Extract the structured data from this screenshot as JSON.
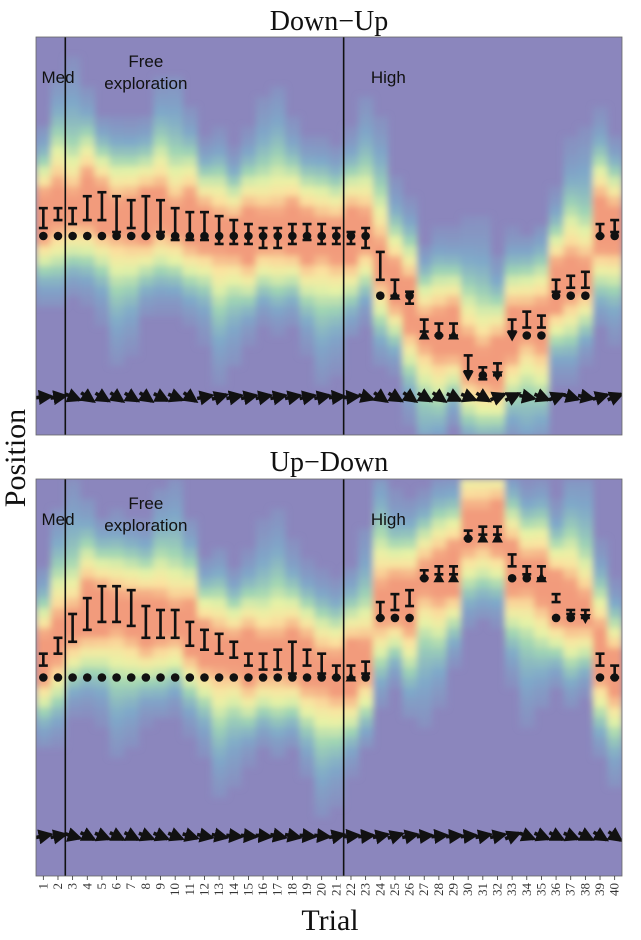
{
  "chart_data": {
    "type": "heatmap",
    "ylabel": "Position",
    "xlabel": "Trial",
    "x_ticks": [
      "1",
      "2",
      "3",
      "4",
      "5",
      "6",
      "7",
      "8",
      "9",
      "10",
      "11",
      "12",
      "13",
      "14",
      "15",
      "16",
      "17",
      "18",
      "19",
      "20",
      "21",
      "22",
      "23",
      "24",
      "25",
      "26",
      "27",
      "28",
      "29",
      "30",
      "31",
      "32",
      "33",
      "34",
      "35",
      "36",
      "37",
      "38",
      "39",
      "40"
    ],
    "y_range": [
      0,
      1
    ],
    "colors": {
      "background": "#8b86bd",
      "scale": [
        "#8b86bd",
        "#7fa8c9",
        "#9fd4b4",
        "#e6f2a6",
        "#fbe3a0",
        "#f29b7c"
      ],
      "ink": "#111111"
    },
    "panels": [
      {
        "title": "Down−Up",
        "segments": [
          {
            "label": "Med",
            "start_trial": 1
          },
          {
            "label": "Free\nexploration",
            "start_trial": 2
          },
          {
            "label": "High",
            "start_trial": 21
          }
        ],
        "phase_boundaries": [
          2.5,
          21.5
        ],
        "target": [
          0.5,
          0.5,
          0.5,
          0.5,
          0.5,
          0.5,
          0.5,
          0.5,
          0.5,
          0.5,
          0.5,
          0.5,
          0.5,
          0.5,
          0.5,
          0.5,
          0.5,
          0.5,
          0.5,
          0.5,
          0.5,
          0.5,
          0.5,
          0.35,
          0.35,
          0.35,
          0.25,
          0.25,
          0.25,
          0.15,
          0.15,
          0.15,
          0.25,
          0.25,
          0.25,
          0.35,
          0.35,
          0.35,
          0.5,
          0.5
        ],
        "marker": [
          "dot",
          "dot",
          "dot",
          "dot",
          "dot",
          "dot",
          "dot",
          "dot",
          "dot",
          "dot",
          "dot",
          "dot",
          "dot",
          "dot",
          "dot",
          "dot",
          "dot",
          "dot",
          "dot",
          "dot",
          "dot",
          "dot",
          "dot",
          "dot",
          "up",
          "dot",
          "up",
          "dot",
          "up",
          "dn",
          "dot",
          "dn",
          "dn",
          "dot",
          "dot",
          "dot",
          "dot",
          "dot",
          "dot",
          "dot"
        ],
        "ci_low": [
          0.52,
          0.54,
          0.53,
          0.54,
          0.54,
          0.51,
          0.52,
          0.5,
          0.51,
          0.49,
          0.49,
          0.49,
          0.48,
          0.48,
          0.48,
          0.47,
          0.47,
          0.48,
          0.49,
          0.48,
          0.48,
          0.48,
          0.47,
          0.39,
          0.35,
          0.33,
          0.26,
          0.25,
          0.25,
          0.16,
          0.14,
          0.15,
          0.26,
          0.27,
          0.27,
          0.36,
          0.37,
          0.37,
          0.5,
          0.51
        ],
        "ci_high": [
          0.57,
          0.57,
          0.57,
          0.6,
          0.61,
          0.6,
          0.59,
          0.6,
          0.59,
          0.57,
          0.56,
          0.56,
          0.55,
          0.54,
          0.53,
          0.52,
          0.52,
          0.53,
          0.53,
          0.53,
          0.52,
          0.51,
          0.52,
          0.46,
          0.39,
          0.36,
          0.29,
          0.28,
          0.28,
          0.2,
          0.17,
          0.18,
          0.29,
          0.31,
          0.3,
          0.39,
          0.4,
          0.41,
          0.53,
          0.54
        ],
        "density_center": [
          0.55,
          0.56,
          0.56,
          0.58,
          0.58,
          0.56,
          0.56,
          0.55,
          0.55,
          0.53,
          0.53,
          0.53,
          0.52,
          0.51,
          0.5,
          0.5,
          0.5,
          0.51,
          0.51,
          0.51,
          0.5,
          0.5,
          0.5,
          0.42,
          0.37,
          0.34,
          0.27,
          0.27,
          0.26,
          0.18,
          0.16,
          0.17,
          0.27,
          0.29,
          0.29,
          0.37,
          0.38,
          0.39,
          0.52,
          0.53
        ],
        "arrow_dir": [
          0.1,
          0.15,
          -0.4,
          -0.7,
          -0.6,
          -0.7,
          -0.6,
          -0.7,
          -0.5,
          -0.4,
          -0.7,
          0.2,
          0.3,
          0.2,
          0.2,
          0.2,
          0.2,
          0.2,
          0.2,
          0.2,
          0.1,
          0.1,
          -0.3,
          -0.7,
          -0.6,
          -0.7,
          -0.6,
          -0.7,
          -0.5,
          -0.4,
          -0.6,
          0.4,
          0.5,
          -0.2,
          -0.4,
          0.4,
          -0.3,
          -0.2,
          0.3,
          0.4
        ]
      },
      {
        "title": "Up−Down",
        "segments": [
          {
            "label": "Med",
            "start_trial": 1
          },
          {
            "label": "Free\nexploration",
            "start_trial": 2
          },
          {
            "label": "High",
            "start_trial": 21
          }
        ],
        "phase_boundaries": [
          2.5,
          21.5
        ],
        "target": [
          0.5,
          0.5,
          0.5,
          0.5,
          0.5,
          0.5,
          0.5,
          0.5,
          0.5,
          0.5,
          0.5,
          0.5,
          0.5,
          0.5,
          0.5,
          0.5,
          0.5,
          0.5,
          0.5,
          0.5,
          0.5,
          0.5,
          0.5,
          0.65,
          0.65,
          0.65,
          0.75,
          0.75,
          0.75,
          0.85,
          0.85,
          0.85,
          0.75,
          0.75,
          0.75,
          0.65,
          0.65,
          0.65,
          0.5,
          0.5
        ],
        "marker": [
          "dot",
          "dot",
          "dot",
          "dot",
          "dot",
          "dot",
          "dot",
          "dot",
          "dot",
          "dot",
          "dot",
          "dot",
          "dot",
          "dot",
          "dot",
          "dot",
          "dot",
          "dot",
          "dot",
          "dot",
          "dot",
          "up",
          "dot",
          "dot",
          "dot",
          "dot",
          "dot",
          "up",
          "up",
          "dot",
          "up",
          "up",
          "dot",
          "dot",
          "up",
          "dot",
          "dot",
          "dn",
          "dot",
          "dot"
        ],
        "ci_low": [
          0.53,
          0.56,
          0.59,
          0.62,
          0.64,
          0.64,
          0.63,
          0.6,
          0.6,
          0.6,
          0.58,
          0.57,
          0.56,
          0.55,
          0.53,
          0.52,
          0.52,
          0.51,
          0.53,
          0.51,
          0.5,
          0.5,
          0.51,
          0.65,
          0.67,
          0.68,
          0.75,
          0.76,
          0.76,
          0.85,
          0.86,
          0.86,
          0.78,
          0.76,
          0.75,
          0.69,
          0.66,
          0.65,
          0.53,
          0.5
        ],
        "ci_high": [
          0.56,
          0.6,
          0.66,
          0.7,
          0.73,
          0.73,
          0.72,
          0.68,
          0.67,
          0.67,
          0.64,
          0.62,
          0.61,
          0.59,
          0.56,
          0.56,
          0.57,
          0.59,
          0.57,
          0.56,
          0.53,
          0.53,
          0.54,
          0.69,
          0.71,
          0.72,
          0.77,
          0.78,
          0.78,
          0.87,
          0.88,
          0.88,
          0.81,
          0.78,
          0.78,
          0.71,
          0.67,
          0.67,
          0.56,
          0.53
        ],
        "density_center": [
          0.55,
          0.58,
          0.62,
          0.66,
          0.68,
          0.68,
          0.67,
          0.64,
          0.63,
          0.63,
          0.61,
          0.59,
          0.58,
          0.57,
          0.55,
          0.54,
          0.54,
          0.55,
          0.55,
          0.53,
          0.52,
          0.52,
          0.53,
          0.67,
          0.69,
          0.7,
          0.76,
          0.77,
          0.77,
          0.86,
          0.87,
          0.87,
          0.79,
          0.77,
          0.76,
          0.7,
          0.67,
          0.66,
          0.55,
          0.52
        ],
        "arrow_dir": [
          0.2,
          0.2,
          -0.3,
          -0.5,
          -0.4,
          -0.5,
          -0.5,
          -0.4,
          -0.4,
          -0.4,
          -0.3,
          -0.2,
          -0.2,
          -0.1,
          -0.1,
          -0.1,
          -0.2,
          -0.2,
          -0.1,
          -0.1,
          0.2,
          0.1,
          0.1,
          0.2,
          0.3,
          0.2,
          0.1,
          0.1,
          0.1,
          0.1,
          0.2,
          0.2,
          0.4,
          -0.4,
          -0.4,
          -0.5,
          -0.4,
          -0.5,
          -0.6,
          -0.7
        ]
      }
    ]
  }
}
